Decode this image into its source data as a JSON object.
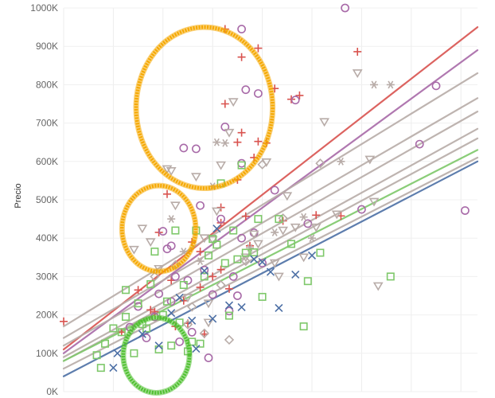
{
  "chart_data": {
    "type": "scatter",
    "ylabel": "Precio",
    "xlabel": "",
    "ylim": [
      0,
      1000000
    ],
    "xlim": [
      0,
      100
    ],
    "y_ticks": [
      {
        "value": 0,
        "label": "0K"
      },
      {
        "value": 100000,
        "label": "100K"
      },
      {
        "value": 200000,
        "label": "200K"
      },
      {
        "value": 300000,
        "label": "300K"
      },
      {
        "value": 400000,
        "label": "400K"
      },
      {
        "value": 500000,
        "label": "500K"
      },
      {
        "value": 600000,
        "label": "600K"
      },
      {
        "value": 700000,
        "label": "700K"
      },
      {
        "value": 800000,
        "label": "800K"
      },
      {
        "value": 900000,
        "label": "900K"
      },
      {
        "value": 1000000,
        "label": "1000K"
      }
    ],
    "x_gridlines": [
      0,
      12,
      24,
      36,
      48,
      60,
      72,
      84,
      96
    ],
    "grid": true,
    "colors": {
      "red": "#d9534f",
      "purple": "#a86aa8",
      "gray": "#b8aca8",
      "green": "#7ec86a",
      "blue": "#4c6fa5",
      "orange_circle": "#f5a800",
      "green_circle": "#4fc030"
    },
    "series": [
      {
        "color": "red",
        "marker": "plus",
        "points": [
          [
            0,
            183000
          ],
          [
            14,
            155000
          ],
          [
            18,
            265000
          ],
          [
            22,
            208000
          ],
          [
            23,
            415000
          ],
          [
            25,
            515000
          ],
          [
            27,
            170000
          ],
          [
            29,
            237000
          ],
          [
            30,
            178000
          ],
          [
            33,
            365000
          ],
          [
            34,
            150000
          ],
          [
            36,
            300000
          ],
          [
            38,
            440000
          ],
          [
            38,
            480000
          ],
          [
            39,
            750000
          ],
          [
            39,
            945000
          ],
          [
            40,
            268000
          ],
          [
            42,
            650000
          ],
          [
            42,
            552000
          ],
          [
            43,
            872000
          ],
          [
            43,
            675000
          ],
          [
            44,
            457000
          ],
          [
            46,
            610000
          ],
          [
            47,
            652000
          ],
          [
            47,
            895000
          ],
          [
            49,
            648000
          ],
          [
            51,
            790000
          ],
          [
            53,
            445000
          ],
          [
            55,
            762000
          ],
          [
            57,
            772000
          ],
          [
            61,
            460000
          ],
          [
            67,
            458000
          ],
          [
            71,
            886000
          ],
          [
            38,
            318000
          ],
          [
            31,
            390000
          ],
          [
            21,
            213000
          ],
          [
            26,
            290000
          ],
          [
            33,
            272000
          ],
          [
            45,
            380000
          ]
        ]
      },
      {
        "color": "purple",
        "marker": "circle",
        "points": [
          [
            16,
            168000
          ],
          [
            20,
            140000
          ],
          [
            22,
            195000
          ],
          [
            23,
            255000
          ],
          [
            24,
            418000
          ],
          [
            25,
            372000
          ],
          [
            26,
            380000
          ],
          [
            27,
            300000
          ],
          [
            28,
            130000
          ],
          [
            29,
            635000
          ],
          [
            30,
            290000
          ],
          [
            32,
            633000
          ],
          [
            33,
            485000
          ],
          [
            34,
            317000
          ],
          [
            36,
            253000
          ],
          [
            38,
            450000
          ],
          [
            39,
            690000
          ],
          [
            40,
            210000
          ],
          [
            41,
            300000
          ],
          [
            42,
            250000
          ],
          [
            43,
            945000
          ],
          [
            43,
            400000
          ],
          [
            43,
            595000
          ],
          [
            44,
            787000
          ],
          [
            46,
            414000
          ],
          [
            47,
            777000
          ],
          [
            48,
            335000
          ],
          [
            51,
            525000
          ],
          [
            56,
            760000
          ],
          [
            59,
            438000
          ],
          [
            68,
            1000000
          ],
          [
            72,
            475000
          ],
          [
            86,
            645000
          ],
          [
            90,
            797000
          ],
          [
            97,
            472000
          ],
          [
            26,
            235000
          ],
          [
            18,
            222000
          ],
          [
            35,
            88000
          ],
          [
            31,
            155000
          ]
        ]
      },
      {
        "color": "gray",
        "marker": "triangle",
        "points": [
          [
            17,
            370000
          ],
          [
            19,
            425000
          ],
          [
            21,
            390000
          ],
          [
            23,
            320000
          ],
          [
            25,
            580000
          ],
          [
            26,
            575000
          ],
          [
            27,
            485000
          ],
          [
            30,
            245000
          ],
          [
            32,
            560000
          ],
          [
            34,
            400000
          ],
          [
            35,
            180000
          ],
          [
            36,
            395000
          ],
          [
            37,
            470000
          ],
          [
            38,
            590000
          ],
          [
            40,
            675000
          ],
          [
            41,
            755000
          ],
          [
            44,
            350000
          ],
          [
            46,
            410000
          ],
          [
            49,
            598000
          ],
          [
            51,
            335000
          ],
          [
            53,
            420000
          ],
          [
            54,
            510000
          ],
          [
            56,
            428000
          ],
          [
            58,
            350000
          ],
          [
            61,
            428000
          ],
          [
            63,
            703000
          ],
          [
            66,
            462000
          ],
          [
            71,
            830000
          ],
          [
            74,
            605000
          ],
          [
            75,
            495000
          ],
          [
            76,
            275000
          ],
          [
            35,
            230000
          ],
          [
            47,
            385000
          ],
          [
            52,
            300000
          ]
        ]
      },
      {
        "color": "gray",
        "marker": "star",
        "points": [
          [
            26,
            450000
          ],
          [
            36,
            535000
          ],
          [
            37,
            650000
          ],
          [
            39,
            648000
          ],
          [
            45,
            375000
          ],
          [
            51,
            415000
          ],
          [
            58,
            455000
          ],
          [
            60,
            400000
          ],
          [
            67,
            600000
          ],
          [
            75,
            800000
          ],
          [
            79,
            800000
          ],
          [
            29,
            365000
          ],
          [
            33,
            340000
          ]
        ]
      },
      {
        "color": "gray",
        "marker": "diamond",
        "points": [
          [
            22,
            300000
          ],
          [
            27,
            330000
          ],
          [
            30,
            175000
          ],
          [
            34,
            152000
          ],
          [
            40,
            135000
          ],
          [
            44,
            340000
          ],
          [
            48,
            592000
          ],
          [
            53,
            452000
          ],
          [
            62,
            595000
          ],
          [
            38,
            278000
          ],
          [
            31,
            221000
          ]
        ]
      },
      {
        "color": "green",
        "marker": "square",
        "points": [
          [
            8,
            95000
          ],
          [
            9,
            62000
          ],
          [
            10,
            125000
          ],
          [
            12,
            165000
          ],
          [
            14,
            155000
          ],
          [
            15,
            195000
          ],
          [
            15,
            265000
          ],
          [
            17,
            100000
          ],
          [
            18,
            230000
          ],
          [
            19,
            176000
          ],
          [
            20,
            165000
          ],
          [
            21,
            280000
          ],
          [
            22,
            365000
          ],
          [
            23,
            110000
          ],
          [
            24,
            200000
          ],
          [
            25,
            235000
          ],
          [
            26,
            120000
          ],
          [
            27,
            420000
          ],
          [
            28,
            180000
          ],
          [
            29,
            278000
          ],
          [
            30,
            105000
          ],
          [
            31,
            130000
          ],
          [
            32,
            420000
          ],
          [
            33,
            125000
          ],
          [
            34,
            300000
          ],
          [
            35,
            355000
          ],
          [
            36,
            398000
          ],
          [
            37,
            383000
          ],
          [
            38,
            543000
          ],
          [
            39,
            335000
          ],
          [
            40,
            198000
          ],
          [
            41,
            420000
          ],
          [
            42,
            345000
          ],
          [
            43,
            590000
          ],
          [
            44,
            362000
          ],
          [
            46,
            363000
          ],
          [
            47,
            450000
          ],
          [
            48,
            247000
          ],
          [
            52,
            450000
          ],
          [
            55,
            385000
          ],
          [
            58,
            170000
          ],
          [
            59,
            288000
          ],
          [
            62,
            362000
          ],
          [
            79,
            300000
          ]
        ]
      },
      {
        "color": "blue",
        "marker": "x",
        "points": [
          [
            12,
            62000
          ],
          [
            13,
            100000
          ],
          [
            19,
            150000
          ],
          [
            23,
            120000
          ],
          [
            26,
            205000
          ],
          [
            28,
            245000
          ],
          [
            31,
            185000
          ],
          [
            34,
            315000
          ],
          [
            36,
            190000
          ],
          [
            37,
            425000
          ],
          [
            40,
            225000
          ],
          [
            43,
            220000
          ],
          [
            46,
            345000
          ],
          [
            48,
            338000
          ],
          [
            50,
            312000
          ],
          [
            56,
            305000
          ],
          [
            52,
            218000
          ],
          [
            60,
            355000
          ],
          [
            32,
            112000
          ]
        ]
      }
    ],
    "trend_lines": [
      {
        "color": "red",
        "y0": 110000,
        "y1": 950000
      },
      {
        "color": "purple",
        "y0": 100000,
        "y1": 890000
      },
      {
        "color": "gray",
        "y0": 170000,
        "y1": 830000
      },
      {
        "color": "gray",
        "y0": 140000,
        "y1": 765000
      },
      {
        "color": "gray",
        "y0": 120000,
        "y1": 730000
      },
      {
        "color": "gray",
        "y0": 90000,
        "y1": 685000
      },
      {
        "color": "gray",
        "y0": 80000,
        "y1": 660000
      },
      {
        "color": "green",
        "y0": 80000,
        "y1": 630000
      },
      {
        "color": "gray",
        "y0": 60000,
        "y1": 610000
      },
      {
        "color": "blue",
        "y0": 40000,
        "y1": 600000
      }
    ],
    "annotations": [
      {
        "type": "ellipse",
        "color": "orange_circle",
        "cx": 34,
        "cy": 740000,
        "rx": 16.5,
        "ry": 210000
      },
      {
        "type": "ellipse",
        "color": "orange_circle",
        "cx": 23,
        "cy": 425000,
        "rx": 8.9,
        "ry": 112000
      },
      {
        "type": "ellipse",
        "color": "green_circle",
        "cx": 22.4,
        "cy": 95000,
        "rx": 8,
        "ry": 98000
      }
    ]
  }
}
